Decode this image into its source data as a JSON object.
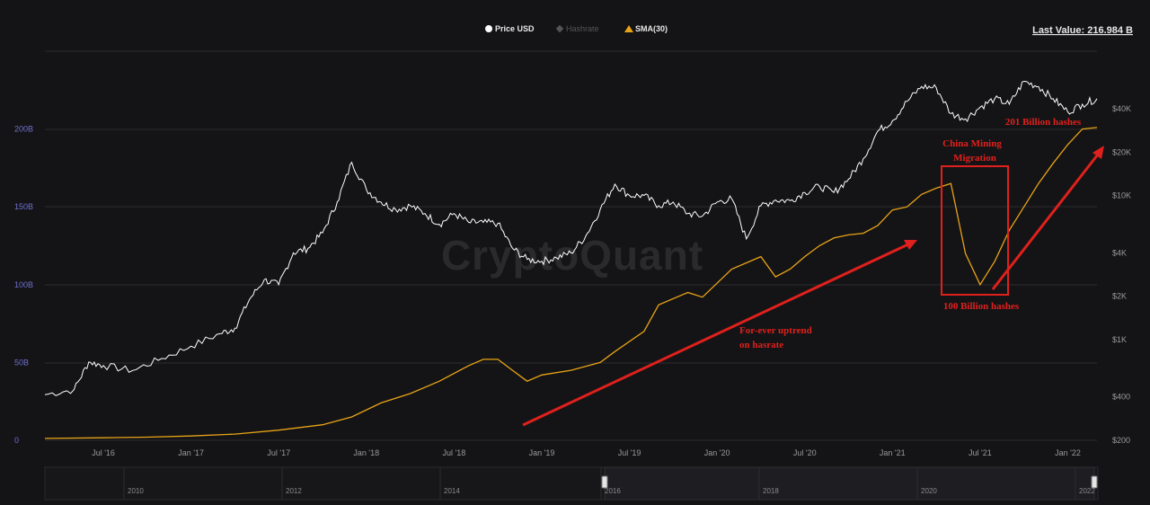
{
  "legend": {
    "items": [
      {
        "label": "Price USD",
        "active": true,
        "color": "#ffffff",
        "icon": "circle-icon"
      },
      {
        "label": "Hashrate",
        "active": false,
        "color": "#555555",
        "icon": "diamond-icon"
      },
      {
        "label": "SMA(30)",
        "active": true,
        "color": "#e8a317",
        "icon": "triangle-icon"
      }
    ],
    "last_value": "Last Value: 216.984 B"
  },
  "watermark": "CryptoQuant",
  "annotations": {
    "uptrend": [
      "For-ever uptrend",
      "on hasrate"
    ],
    "china": [
      "China Mining",
      "Migration"
    ],
    "low": "100 Billion hashes",
    "high": "201 Billion hashes"
  },
  "navigator": {
    "years": [
      "2010",
      "2012",
      "2014",
      "2016",
      "2018",
      "2020",
      "2022"
    ]
  },
  "colors": {
    "price": "#ffffff",
    "sma": "#e8a317",
    "annotation": "#e0201c",
    "background": "#141416"
  },
  "chart_data": {
    "type": "line",
    "left_axis": {
      "ticks": [
        "0",
        "50B",
        "100B",
        "150B",
        "200B"
      ],
      "values": [
        0,
        50,
        100,
        150,
        200
      ],
      "unit": "B"
    },
    "right_axis": {
      "ticks": [
        "$200",
        "$400",
        "$1K",
        "$2K",
        "$4K",
        "$10K",
        "$20K",
        "$40K"
      ],
      "values": [
        200,
        400,
        1000,
        2000,
        4000,
        10000,
        20000,
        40000
      ],
      "scale": "log"
    },
    "x_ticks": [
      "Jul '16",
      "Jan '17",
      "Jul '17",
      "Jan '18",
      "Jul '18",
      "Jan '19",
      "Jul '19",
      "Jan '20",
      "Jul '20",
      "Jan '21",
      "Jul '21",
      "Jan '22"
    ],
    "x_range": [
      "2016-03",
      "2022-03"
    ],
    "series": [
      {
        "name": "Price USD",
        "axis": "right",
        "points": [
          [
            "2016-03",
            415
          ],
          [
            "2016-05",
            450
          ],
          [
            "2016-06",
            700
          ],
          [
            "2016-07",
            660
          ],
          [
            "2016-09",
            610
          ],
          [
            "2016-11",
            740
          ],
          [
            "2017-01",
            900
          ],
          [
            "2017-03",
            1100
          ],
          [
            "2017-04",
            1200
          ],
          [
            "2017-05",
            1900
          ],
          [
            "2017-06",
            2600
          ],
          [
            "2017-07",
            2400
          ],
          [
            "2017-08",
            4000
          ],
          [
            "2017-09",
            4300
          ],
          [
            "2017-10",
            5500
          ],
          [
            "2017-11",
            9000
          ],
          [
            "2017-12",
            17000
          ],
          [
            "2018-01",
            11000
          ],
          [
            "2018-02",
            9000
          ],
          [
            "2018-03",
            8000
          ],
          [
            "2018-04",
            8500
          ],
          [
            "2018-05",
            7500
          ],
          [
            "2018-06",
            6300
          ],
          [
            "2018-07",
            7500
          ],
          [
            "2018-08",
            6500
          ],
          [
            "2018-09",
            6500
          ],
          [
            "2018-10",
            6400
          ],
          [
            "2018-11",
            4300
          ],
          [
            "2018-12",
            3600
          ],
          [
            "2019-01",
            3500
          ],
          [
            "2019-02",
            3700
          ],
          [
            "2019-03",
            4000
          ],
          [
            "2019-04",
            5200
          ],
          [
            "2019-05",
            8000
          ],
          [
            "2019-06",
            12000
          ],
          [
            "2019-07",
            10000
          ],
          [
            "2019-08",
            10000
          ],
          [
            "2019-09",
            8500
          ],
          [
            "2019-10",
            9000
          ],
          [
            "2019-11",
            7500
          ],
          [
            "2019-12",
            7200
          ],
          [
            "2020-01",
            9000
          ],
          [
            "2020-02",
            9500
          ],
          [
            "2020-03",
            5000
          ],
          [
            "2020-04",
            8500
          ],
          [
            "2020-05",
            9300
          ],
          [
            "2020-06",
            9200
          ],
          [
            "2020-07",
            10500
          ],
          [
            "2020-08",
            11600
          ],
          [
            "2020-09",
            10500
          ],
          [
            "2020-10",
            13000
          ],
          [
            "2020-11",
            18000
          ],
          [
            "2020-12",
            28000
          ],
          [
            "2021-01",
            33000
          ],
          [
            "2021-02",
            45000
          ],
          [
            "2021-03",
            57000
          ],
          [
            "2021-04",
            56000
          ],
          [
            "2021-05",
            37000
          ],
          [
            "2021-06",
            34000
          ],
          [
            "2021-07",
            41000
          ],
          [
            "2021-08",
            47000
          ],
          [
            "2021-09",
            43000
          ],
          [
            "2021-10",
            62000
          ],
          [
            "2021-11",
            57000
          ],
          [
            "2021-12",
            47000
          ],
          [
            "2022-01",
            38000
          ],
          [
            "2022-02",
            43000
          ],
          [
            "2022-03",
            47000
          ]
        ]
      },
      {
        "name": "SMA(30)",
        "axis": "left",
        "points": [
          [
            "2016-03",
            1.2
          ],
          [
            "2016-07",
            1.6
          ],
          [
            "2016-10",
            2.0
          ],
          [
            "2017-01",
            2.8
          ],
          [
            "2017-04",
            4.0
          ],
          [
            "2017-07",
            6.5
          ],
          [
            "2017-10",
            10
          ],
          [
            "2017-12",
            15
          ],
          [
            "2018-02",
            24
          ],
          [
            "2018-04",
            30
          ],
          [
            "2018-06",
            38
          ],
          [
            "2018-08",
            48
          ],
          [
            "2018-09",
            52
          ],
          [
            "2018-10",
            52
          ],
          [
            "2018-11",
            45
          ],
          [
            "2018-12",
            38
          ],
          [
            "2019-01",
            42
          ],
          [
            "2019-03",
            45
          ],
          [
            "2019-05",
            50
          ],
          [
            "2019-06",
            57
          ],
          [
            "2019-08",
            70
          ],
          [
            "2019-09",
            87
          ],
          [
            "2019-11",
            95
          ],
          [
            "2019-12",
            92
          ],
          [
            "2020-02",
            110
          ],
          [
            "2020-04",
            118
          ],
          [
            "2020-05",
            105
          ],
          [
            "2020-06",
            110
          ],
          [
            "2020-07",
            118
          ],
          [
            "2020-08",
            125
          ],
          [
            "2020-09",
            130
          ],
          [
            "2020-10",
            132
          ],
          [
            "2020-11",
            133
          ],
          [
            "2020-12",
            138
          ],
          [
            "2021-01",
            148
          ],
          [
            "2021-02",
            150
          ],
          [
            "2021-03",
            158
          ],
          [
            "2021-04",
            162
          ],
          [
            "2021-05",
            165
          ],
          [
            "2021-06",
            120
          ],
          [
            "2021-07",
            100
          ],
          [
            "2021-08",
            115
          ],
          [
            "2021-09",
            135
          ],
          [
            "2021-10",
            150
          ],
          [
            "2021-11",
            165
          ],
          [
            "2021-12",
            178
          ],
          [
            "2022-01",
            190
          ],
          [
            "2022-02",
            200
          ],
          [
            "2022-03",
            201
          ]
        ]
      }
    ]
  }
}
